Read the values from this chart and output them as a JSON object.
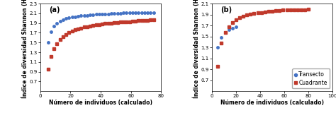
{
  "panel_a": {
    "label": "(a)",
    "transecto_x": [
      5,
      7,
      9,
      11,
      13,
      15,
      17,
      19,
      21,
      23,
      25,
      27,
      29,
      31,
      33,
      35,
      37,
      39,
      41,
      43,
      45,
      47,
      49,
      51,
      53,
      55,
      57,
      59,
      61,
      63,
      65,
      67,
      69,
      71,
      73,
      75
    ],
    "transecto_y": [
      1.5,
      1.72,
      1.84,
      1.9,
      1.94,
      1.97,
      1.99,
      2.01,
      2.02,
      2.03,
      2.04,
      2.05,
      2.06,
      2.06,
      2.07,
      2.07,
      2.08,
      2.08,
      2.09,
      2.09,
      2.09,
      2.1,
      2.1,
      2.1,
      2.1,
      2.11,
      2.11,
      2.11,
      2.11,
      2.11,
      2.11,
      2.12,
      2.12,
      2.12,
      2.12,
      2.12
    ],
    "cuadrante_x": [
      5,
      7,
      9,
      11,
      13,
      15,
      17,
      19,
      21,
      23,
      25,
      27,
      29,
      31,
      33,
      35,
      37,
      39,
      41,
      43,
      45,
      47,
      49,
      51,
      53,
      55,
      57,
      59,
      61,
      63,
      65,
      67,
      69,
      71,
      73,
      75
    ],
    "cuadrante_y": [
      0.95,
      1.22,
      1.38,
      1.48,
      1.56,
      1.62,
      1.67,
      1.71,
      1.74,
      1.76,
      1.78,
      1.8,
      1.82,
      1.83,
      1.84,
      1.85,
      1.86,
      1.87,
      1.88,
      1.89,
      1.9,
      1.9,
      1.91,
      1.91,
      1.92,
      1.92,
      1.93,
      1.93,
      1.94,
      1.94,
      1.95,
      1.95,
      1.96,
      1.96,
      1.97,
      1.97
    ],
    "xlim": [
      0,
      80
    ],
    "ylim": [
      0.5,
      2.3
    ],
    "yticks": [
      0.7,
      0.9,
      1.1,
      1.3,
      1.5,
      1.7,
      1.9,
      2.1,
      2.3
    ],
    "xticks": [
      0,
      20,
      40,
      60,
      80
    ],
    "xlabel": "Número de individuos (calculado)",
    "ylabel": "Índice de diversidad Shannon (H)"
  },
  "panel_b": {
    "label": "(b)",
    "transecto_x": [
      5,
      8,
      11,
      14,
      17,
      20
    ],
    "transecto_y": [
      1.3,
      1.48,
      1.57,
      1.62,
      1.65,
      1.68
    ],
    "cuadrante_x": [
      5,
      8,
      11,
      14,
      17,
      20,
      23,
      26,
      29,
      32,
      35,
      38,
      41,
      44,
      47,
      50,
      53,
      56,
      59,
      62,
      65,
      68,
      71,
      74,
      77,
      80
    ],
    "cuadrante_y": [
      0.95,
      1.38,
      1.57,
      1.68,
      1.75,
      1.8,
      1.84,
      1.87,
      1.89,
      1.91,
      1.92,
      1.93,
      1.94,
      1.95,
      1.96,
      1.96,
      1.97,
      1.97,
      1.98,
      1.98,
      1.98,
      1.99,
      1.99,
      1.99,
      1.99,
      2.0
    ],
    "xlim": [
      0,
      100
    ],
    "ylim": [
      0.5,
      2.1
    ],
    "yticks": [
      0.7,
      0.9,
      1.1,
      1.3,
      1.5,
      1.7,
      1.9,
      2.1
    ],
    "xticks": [
      0,
      20,
      40,
      60,
      80,
      100
    ],
    "xlabel": "Número de individuos (calculado)",
    "ylabel": "Índice de diversidad Shannon (H)"
  },
  "transecto_color": "#4472C4",
  "cuadrante_color": "#C0392B",
  "transecto_marker": "o",
  "cuadrante_marker": "s",
  "markersize": 2.5,
  "legend_labels": [
    "Transecto",
    "Cuadrante"
  ],
  "background_color": "#ffffff",
  "fontsize_label": 5.5,
  "fontsize_tick": 5,
  "fontsize_legend": 5.5,
  "label_fontsize": 7
}
